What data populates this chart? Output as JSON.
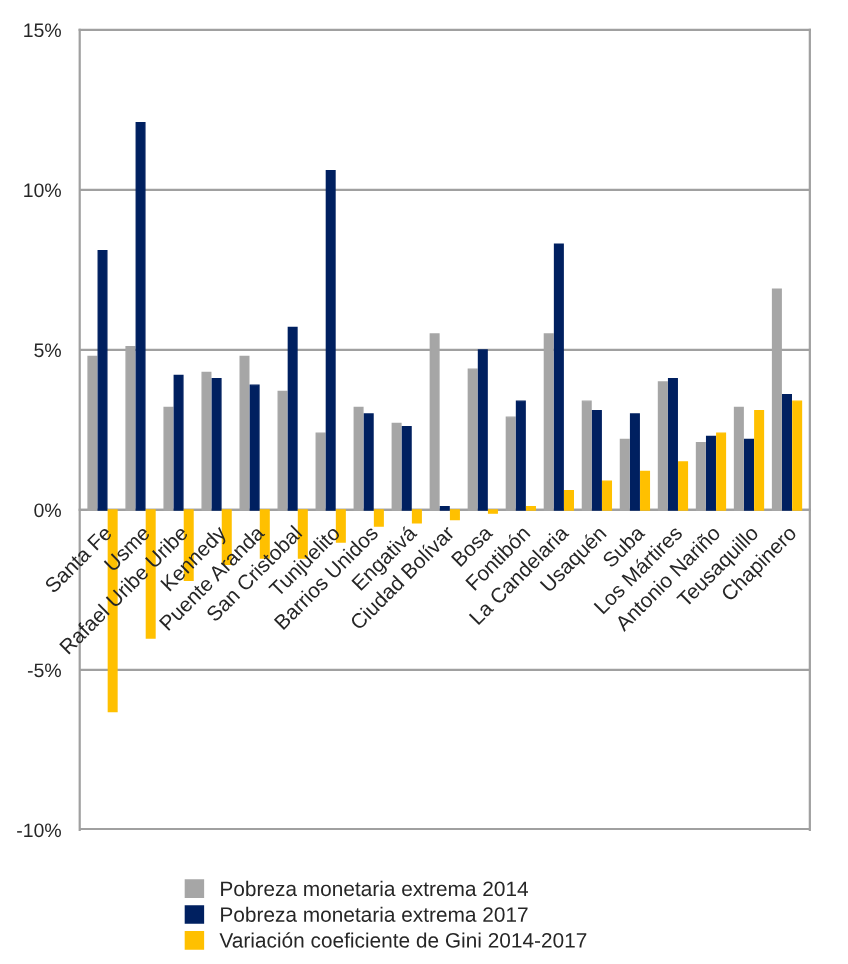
{
  "chart_data": {
    "type": "bar",
    "categories": [
      "Santa Fe",
      "Usme",
      "Rafael Uribe Uribe",
      "Kennedy",
      "Puente Aranda",
      "San Cristobal",
      "Tunjuelito",
      "Barrios Unidos",
      "Engativá",
      "Ciudad Bolívar",
      "Bosa",
      "Fontibón",
      "La Candelaria",
      "Usaquén",
      "Suba",
      "Los Mártires",
      "Antonio Nariño",
      "Teusaquillo",
      "Chapinero"
    ],
    "series": [
      {
        "name": "Pobreza monetaria extrema 2014",
        "color": "#a6a6a6",
        "values": [
          4.8,
          5.1,
          3.2,
          4.3,
          4.8,
          3.7,
          2.4,
          3.2,
          2.7,
          5.5,
          4.4,
          2.9,
          5.5,
          3.4,
          2.2,
          4.0,
          2.1,
          3.2,
          6.9
        ]
      },
      {
        "name": "Pobreza monetaria extrema 2017",
        "color": "#002060",
        "values": [
          8.1,
          12.1,
          4.2,
          4.1,
          3.9,
          5.7,
          10.6,
          3.0,
          2.6,
          0.1,
          5.0,
          3.4,
          8.3,
          3.1,
          3.0,
          4.1,
          2.3,
          2.2,
          3.6
        ]
      },
      {
        "name": "Variación coeficiente de Gini 2014-2017",
        "color": "#ffc000",
        "values": [
          -6.3,
          -4.0,
          -2.2,
          -1.7,
          -1.5,
          -1.5,
          -1.0,
          -0.5,
          -0.4,
          -0.3,
          -0.1,
          0.1,
          0.6,
          0.9,
          1.2,
          1.5,
          2.4,
          3.1,
          3.4
        ]
      }
    ],
    "ylim": [
      -10,
      15
    ],
    "yticks": [
      {
        "value": -10,
        "label": "-10%"
      },
      {
        "value": -5,
        "label": "-5%"
      },
      {
        "value": 0,
        "label": "0%"
      },
      {
        "value": 5,
        "label": "5%"
      },
      {
        "value": 10,
        "label": "10%"
      },
      {
        "value": 15,
        "label": "15%"
      }
    ],
    "grid": "y",
    "legend": "bottom"
  }
}
